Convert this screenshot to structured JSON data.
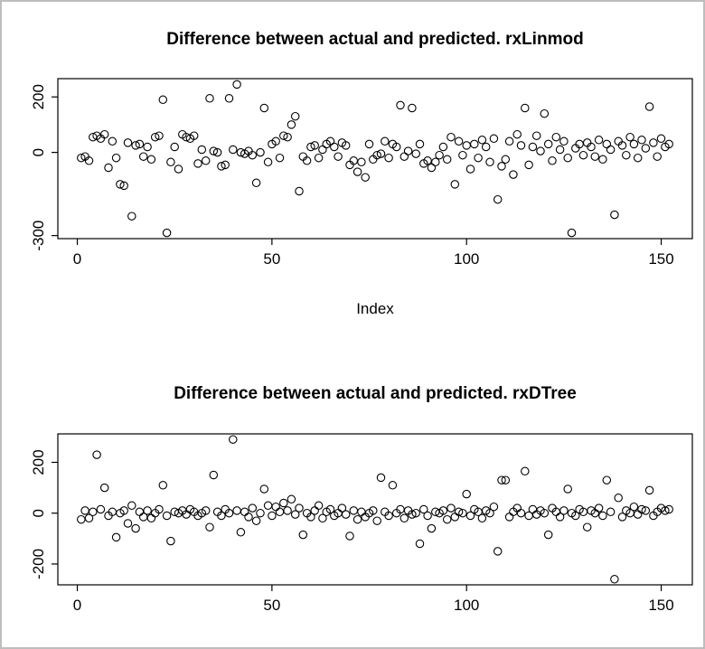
{
  "page": {
    "background": "#ffffff",
    "frame_border_color": "#bdbdbd",
    "ink_color": "#000000"
  },
  "chart_data": [
    {
      "type": "scatter",
      "title": "Difference between actual and predicted. rxLinmod",
      "xlabel": "Index",
      "ylabel": "",
      "marker": "open-circle",
      "x_mode": "index",
      "xlim": [
        -5,
        158
      ],
      "ylim": [
        -311,
        266
      ],
      "x_ticks": [
        0,
        50,
        100,
        150
      ],
      "y_ticks": [
        200,
        0,
        -300
      ],
      "grid": false,
      "values": [
        -20,
        -15,
        -30,
        55,
        60,
        50,
        65,
        -55,
        40,
        -20,
        -115,
        -120,
        35,
        -230,
        25,
        30,
        -15,
        20,
        -25,
        55,
        60,
        190,
        -290,
        -35,
        20,
        -60,
        65,
        55,
        50,
        60,
        -40,
        10,
        -30,
        195,
        5,
        0,
        -50,
        -45,
        195,
        10,
        245,
        0,
        -5,
        5,
        -10,
        -110,
        0,
        160,
        -35,
        30,
        40,
        -20,
        60,
        55,
        100,
        130,
        -140,
        -15,
        -30,
        20,
        25,
        -20,
        10,
        30,
        40,
        20,
        -15,
        35,
        25,
        -45,
        -30,
        -70,
        -35,
        -90,
        30,
        -25,
        -10,
        -5,
        40,
        -20,
        30,
        20,
        170,
        -15,
        5,
        160,
        -5,
        30,
        -40,
        -30,
        -55,
        -35,
        -10,
        20,
        -25,
        55,
        -115,
        40,
        -10,
        25,
        -60,
        30,
        -20,
        45,
        20,
        -35,
        50,
        -170,
        -50,
        -25,
        40,
        -80,
        65,
        25,
        160,
        -45,
        20,
        60,
        5,
        140,
        30,
        -30,
        55,
        10,
        40,
        -20,
        -290,
        15,
        30,
        -10,
        35,
        20,
        -15,
        45,
        -25,
        30,
        10,
        -225,
        40,
        25,
        -10,
        55,
        30,
        -20,
        45,
        15,
        165,
        35,
        -15,
        50,
        20,
        30
      ]
    },
    {
      "type": "scatter",
      "title": "Difference between actual and predicted. rxDTree",
      "xlabel": "",
      "ylabel": "",
      "marker": "open-circle",
      "x_mode": "index",
      "xlim": [
        -5,
        158
      ],
      "ylim": [
        -282,
        312
      ],
      "x_ticks": [
        0,
        50,
        100,
        150
      ],
      "y_ticks": [
        200,
        0,
        -200
      ],
      "grid": false,
      "values": [
        -25,
        10,
        -20,
        5,
        230,
        15,
        100,
        -10,
        5,
        -95,
        0,
        10,
        -40,
        30,
        -60,
        5,
        -15,
        10,
        -20,
        0,
        15,
        110,
        -10,
        -110,
        5,
        0,
        10,
        -5,
        15,
        5,
        -10,
        0,
        10,
        -55,
        150,
        5,
        -10,
        15,
        0,
        290,
        10,
        -75,
        5,
        -15,
        20,
        -30,
        0,
        95,
        30,
        -10,
        25,
        5,
        40,
        10,
        55,
        -5,
        20,
        -85,
        0,
        -15,
        10,
        30,
        -20,
        5,
        15,
        -10,
        0,
        20,
        -5,
        -90,
        10,
        -25,
        5,
        -15,
        0,
        10,
        -30,
        140,
        5,
        -10,
        110,
        0,
        15,
        -20,
        10,
        -5,
        0,
        -120,
        15,
        -10,
        -60,
        5,
        0,
        10,
        -25,
        20,
        -15,
        5,
        0,
        75,
        -10,
        15,
        5,
        -20,
        10,
        0,
        25,
        -150,
        130,
        130,
        -15,
        5,
        20,
        0,
        165,
        -10,
        15,
        -5,
        10,
        0,
        -85,
        20,
        5,
        -15,
        10,
        95,
        0,
        -10,
        15,
        5,
        -55,
        10,
        0,
        20,
        -10,
        130,
        5,
        -260,
        60,
        -15,
        10,
        0,
        25,
        -5,
        15,
        10,
        90,
        -10,
        5,
        20,
        10,
        15
      ]
    }
  ]
}
